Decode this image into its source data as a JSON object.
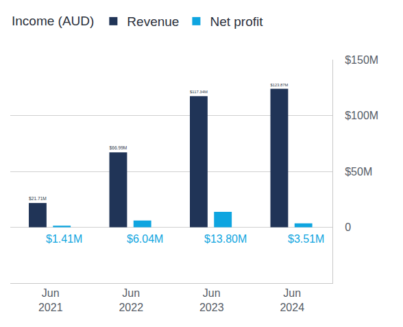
{
  "chart_data": {
    "type": "bar",
    "title": "Income (AUD)",
    "categories": [
      "Jun 2021",
      "Jun 2022",
      "Jun 2023",
      "Jun 2024"
    ],
    "series": [
      {
        "name": "Revenue",
        "color": "#203457",
        "values": [
          21.71,
          66.99,
          117.34,
          123.87
        ],
        "value_labels": [
          "$21.71M",
          "$66.99M",
          "$117.34M",
          "$123.87M"
        ]
      },
      {
        "name": "Net profit",
        "color": "#0ea5e0",
        "values": [
          1.41,
          6.04,
          13.8,
          3.51
        ],
        "value_labels": [
          "$1.41M",
          "$6.04M",
          "$13.80M",
          "$3.51M"
        ]
      }
    ],
    "ylim": [
      -50,
      150
    ],
    "yticks": [
      0,
      {
        "value": 50,
        "label": "$50M"
      },
      {
        "value": 100,
        "label": "$100M"
      },
      {
        "value": 150,
        "label": "$150M"
      }
    ],
    "grid": true,
    "legend": "top left",
    "data_labels": true
  }
}
